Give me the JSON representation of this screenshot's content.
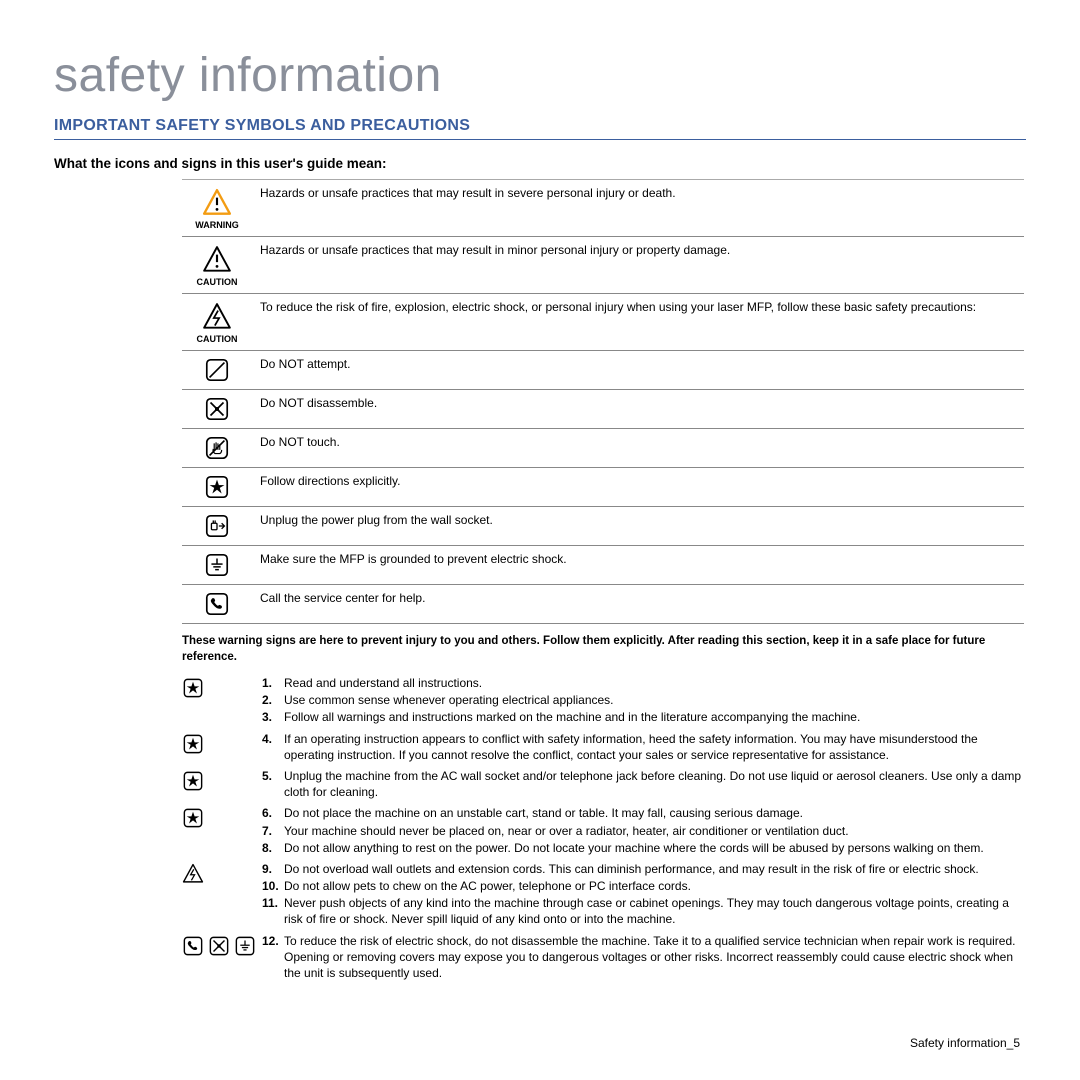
{
  "title": "safety information",
  "section_heading": "IMPORTANT SAFETY SYMBOLS AND PRECAUTIONS",
  "sub_heading": "What the icons and signs in this user's guide mean:",
  "colors": {
    "title": "#8a8f9a",
    "heading": "#3b5e9e",
    "border": "#888888",
    "text": "#000000",
    "warning_orange": "#f39c12",
    "warning_fill": "#ffffff"
  },
  "symbol_table": [
    {
      "icon": "warning-triangle-orange",
      "label": "WARNING",
      "text": "Hazards or unsafe practices that may result in severe personal injury or death."
    },
    {
      "icon": "caution-triangle",
      "label": "CAUTION",
      "text": "Hazards or unsafe practices that may result in minor personal injury or property damage."
    },
    {
      "icon": "caution-triangle-bolt",
      "label": "CAUTION",
      "text": "To reduce the risk of fire, explosion, electric shock, or personal injury when using your laser MFP, follow these basic safety precautions:"
    },
    {
      "icon": "no-attempt",
      "label": "",
      "text": "Do NOT attempt."
    },
    {
      "icon": "no-disassemble",
      "label": "",
      "text": "Do NOT disassemble."
    },
    {
      "icon": "no-touch",
      "label": "",
      "text": "Do NOT touch."
    },
    {
      "icon": "star-box",
      "label": "",
      "text": "Follow directions explicitly."
    },
    {
      "icon": "unplug",
      "label": "",
      "text": "Unplug the power plug from the wall socket."
    },
    {
      "icon": "ground",
      "label": "",
      "text": "Make sure the MFP is grounded to prevent electric shock."
    },
    {
      "icon": "phone",
      "label": "",
      "text": "Call the service center for help."
    }
  ],
  "warning_note": "These warning signs are here to prevent injury to you and others. Follow them explicitly. After reading this section, keep it in a safe place for future reference.",
  "instruction_groups": [
    {
      "icons": [
        "star-box"
      ],
      "items": [
        {
          "n": "1.",
          "t": "Read and understand all instructions."
        },
        {
          "n": "2.",
          "t": "Use common sense whenever operating electrical appliances."
        },
        {
          "n": "3.",
          "t": "Follow all warnings and instructions marked on the machine and in the literature accompanying the machine."
        }
      ]
    },
    {
      "icons": [
        "star-box"
      ],
      "items": [
        {
          "n": "4.",
          "t": "If an operating instruction appears to conflict with safety information, heed the safety information. You may have misunderstood the operating instruction. If you cannot resolve the conflict, contact your sales or service representative for assistance."
        }
      ]
    },
    {
      "icons": [
        "star-box"
      ],
      "items": [
        {
          "n": "5.",
          "t": "Unplug the machine from the AC wall socket and/or telephone jack before cleaning. Do not use liquid or aerosol cleaners. Use only a damp cloth for cleaning."
        }
      ]
    },
    {
      "icons": [
        "star-box"
      ],
      "items": [
        {
          "n": "6.",
          "t": "Do not place the machine on an unstable cart, stand or table. It may fall, causing serious damage."
        },
        {
          "n": "7.",
          "t": "Your machine should never be placed on, near or over a radiator, heater, air conditioner or ventilation duct."
        },
        {
          "n": "8.",
          "t": "Do not allow anything to rest on the power. Do not locate your machine where the cords will be abused by persons walking on them."
        }
      ]
    },
    {
      "icons": [
        "caution-triangle-bolt"
      ],
      "items": [
        {
          "n": "9.",
          "t": "Do not overload wall outlets and extension cords. This can diminish performance, and may result in the risk of fire or electric shock."
        },
        {
          "n": "10.",
          "t": "Do not allow pets to chew on the AC power, telephone or PC interface cords."
        },
        {
          "n": "11.",
          "t": "Never push objects of any kind into the machine through case or cabinet openings. They may touch dangerous voltage points, creating a risk of fire or shock. Never spill liquid of any kind onto or into the machine."
        }
      ]
    },
    {
      "icons": [
        "phone",
        "no-disassemble",
        "ground"
      ],
      "items": [
        {
          "n": "12.",
          "t": "To reduce the risk of electric shock, do not disassemble the machine. Take it to a qualified service technician when repair work is required. Opening or removing covers may expose you to dangerous voltages or other risks. Incorrect reassembly could cause electric shock when the unit is subsequently used."
        }
      ]
    }
  ],
  "footer": "Safety information_5"
}
